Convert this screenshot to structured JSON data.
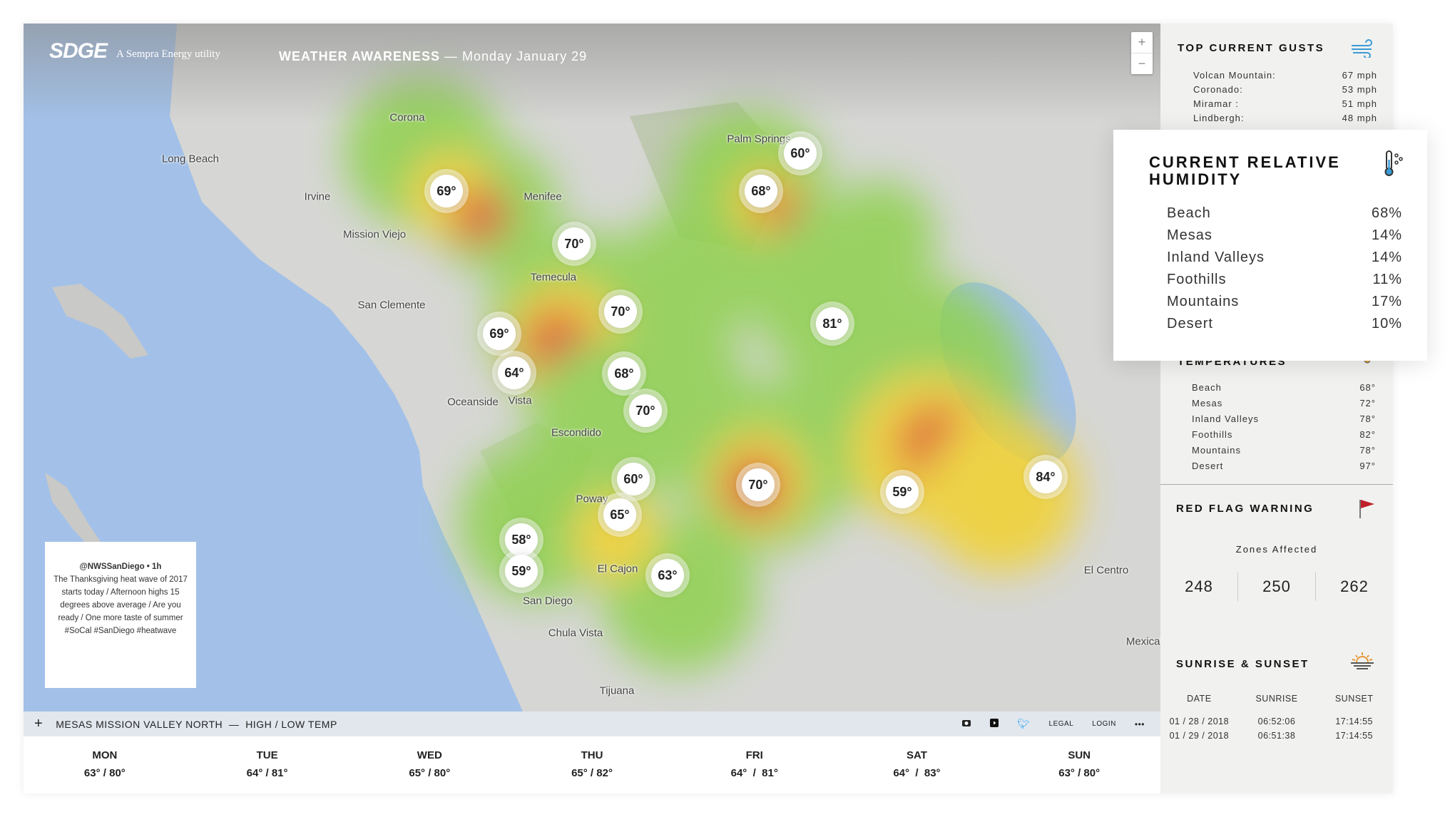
{
  "header": {
    "logo": "SDGE",
    "sempra": "A Sempra Energy utility",
    "title_strong": "WEATHER AWARENESS",
    "title_date": "— Monday January 29",
    "zoom_in": "+",
    "zoom_out": "−"
  },
  "map": {
    "cities": [
      "Corona",
      "Long Beach",
      "Irvine",
      "Menifee",
      "Palm Springs",
      "Mission Viejo",
      "Temecula",
      "San Clemente",
      "Oceanside",
      "Vista",
      "Escondido",
      "Poway",
      "El Cajon",
      "San Diego",
      "Chula Vista",
      "Tijuana",
      "El Centro",
      "Mexicali"
    ],
    "markers": [
      "69°",
      "70°",
      "60°",
      "68°",
      "70°",
      "69°",
      "64°",
      "68°",
      "70°",
      "81°",
      "60°",
      "70°",
      "59°",
      "84°",
      "65°",
      "58°",
      "59°",
      "63°"
    ],
    "heat_colors": {
      "low": "#8fd14f",
      "mid": "#f2d22e",
      "high": "#e0452a"
    }
  },
  "tweet": {
    "handle": "@NWSSanDiego • 1h",
    "text": "The Thanksgiving heat wave of 2017 starts today / Afternoon highs 15 degrees above average /  Are you ready / One more taste of summer #SoCal #SanDiego #heatwave"
  },
  "bottom_bar": {
    "plus": "+",
    "location": "MESAS MISSION VALLEY NORTH  —  HIGH / LOW TEMP",
    "legal": "LEGAL",
    "login": "LOGIN",
    "more": "•••",
    "icons": [
      "camera-icon",
      "youtube-icon",
      "twitter-icon"
    ]
  },
  "forecast": [
    {
      "day": "MON",
      "temp": "63° / 80°"
    },
    {
      "day": "TUE",
      "temp": "64° / 81°"
    },
    {
      "day": "WED",
      "temp": "65° / 80°"
    },
    {
      "day": "THU",
      "temp": "65° / 82°"
    },
    {
      "day": "FRI",
      "temp": "64°  /  81°"
    },
    {
      "day": "SAT",
      "temp": "64°  /  83°"
    },
    {
      "day": "SUN",
      "temp": "63° / 80°"
    }
  ],
  "sidebar": {
    "gusts": {
      "title": "TOP CURRENT GUSTS",
      "rows": [
        {
          "name": "Volcan Mountain:",
          "value": "67 mph"
        },
        {
          "name": "Coronado:",
          "value": "53 mph"
        },
        {
          "name": "Miramar :",
          "value": "51  mph"
        },
        {
          "name": "Lindbergh:",
          "value": "48 mph"
        }
      ]
    },
    "humidity": {
      "title_line1": "CURRENT RELATIVE",
      "title_line2": "HUMIDITY",
      "rows": [
        {
          "name": "Beach",
          "value": "68%"
        },
        {
          "name": "Mesas",
          "value": "14%"
        },
        {
          "name": "Inland Valleys",
          "value": "14%"
        },
        {
          "name": "Foothills",
          "value": "11%"
        },
        {
          "name": "Mountains",
          "value": "17%"
        },
        {
          "name": "Desert",
          "value": "10%"
        }
      ]
    },
    "temperatures": {
      "title": "TEMPERATURES",
      "rows": [
        {
          "name": "Beach",
          "value": "68°"
        },
        {
          "name": "Mesas",
          "value": "72°"
        },
        {
          "name": "Inland Valleys",
          "value": "78°"
        },
        {
          "name": "Foothills",
          "value": "82°"
        },
        {
          "name": "Mountains",
          "value": "78°"
        },
        {
          "name": "Desert",
          "value": "97°"
        }
      ]
    },
    "red_flag": {
      "title": "RED FLAG WARNING",
      "zones_label": "Zones Affected",
      "zones": [
        "248",
        "250",
        "262"
      ],
      "flag_color": "#c0202a"
    },
    "sun": {
      "title": "SUNRISE & SUNSET",
      "headers": [
        "DATE",
        "SUNRISE",
        "SUNSET"
      ],
      "rows": [
        [
          "01 / 28 / 2018",
          "06:52:06",
          "17:14:55"
        ],
        [
          "01 / 29 / 2018",
          "06:51:38",
          "17:14:55"
        ]
      ]
    }
  }
}
